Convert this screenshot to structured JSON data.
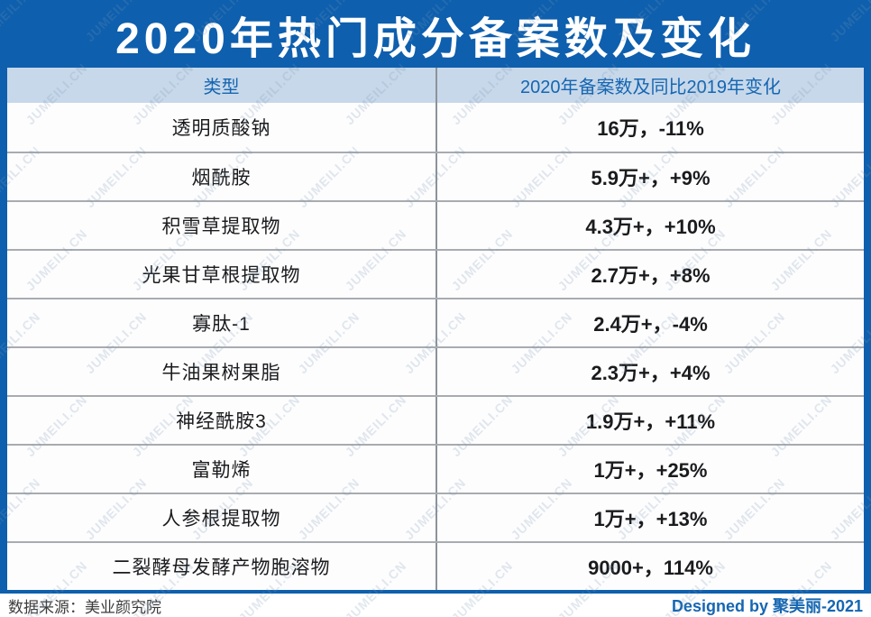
{
  "title": "2020年热门成分备案数及变化",
  "table": {
    "headers": [
      "类型",
      "2020年备案数及同比2019年变化"
    ],
    "rows": [
      {
        "type": "透明质酸钠",
        "value": "16万，-11%"
      },
      {
        "type": "烟酰胺",
        "value": "5.9万+，+9%"
      },
      {
        "type": "积雪草提取物",
        "value": "4.3万+，+10%"
      },
      {
        "type": "光果甘草根提取物",
        "value": "2.7万+，+8%"
      },
      {
        "type": "寡肽-1",
        "value": "2.4万+，-4%"
      },
      {
        "type": "牛油果树果脂",
        "value": "2.3万+，+4%"
      },
      {
        "type": "神经酰胺3",
        "value": "1.9万+，+11%"
      },
      {
        "type": "富勒烯",
        "value": "1万+，+25%"
      },
      {
        "type": "人参根提取物",
        "value": "1万+，+13%"
      },
      {
        "type": "二裂酵母发酵产物胞溶物",
        "value": "9000+，114%"
      }
    ]
  },
  "chart_data": {
    "type": "table",
    "title": "2020年热门成分备案数及变化",
    "columns": [
      "类型",
      "2020年备案数及同比2019年变化"
    ],
    "rows": [
      [
        "透明质酸钠",
        "16万，-11%"
      ],
      [
        "烟酰胺",
        "5.9万+，+9%"
      ],
      [
        "积雪草提取物",
        "4.3万+，+10%"
      ],
      [
        "光果甘草根提取物",
        "2.7万+，+8%"
      ],
      [
        "寡肽-1",
        "2.4万+，-4%"
      ],
      [
        "牛油果树果脂",
        "2.3万+，+4%"
      ],
      [
        "神经酰胺3",
        "1.9万+，+11%"
      ],
      [
        "富勒烯",
        "1万+，+25%"
      ],
      [
        "人参根提取物",
        "1万+，+13%"
      ],
      [
        "二裂酵母发酵产物胞溶物",
        "9000+，114%"
      ]
    ],
    "registrations_2020_approx": [
      160000,
      59000,
      43000,
      27000,
      24000,
      23000,
      19000,
      10000,
      10000,
      9000
    ],
    "yoy_change_pct": [
      -11,
      9,
      10,
      8,
      -4,
      4,
      11,
      25,
      13,
      114
    ]
  },
  "footer": {
    "source": "数据来源：美业颜究院",
    "credit": "Designed by 聚美丽-2021"
  },
  "watermark": {
    "text": "JUMEILI.CN"
  },
  "colors": {
    "primary_blue": "#0e5fae",
    "header_bg": "#c7d8ea",
    "header_text": "#1566b2",
    "body_text": "#1a1b1d",
    "footer_text": "#3c3c3c",
    "credit_blue": "#1566b2",
    "divider": "#a8acb1",
    "watermark": "rgba(125,152,178,0.22)"
  }
}
